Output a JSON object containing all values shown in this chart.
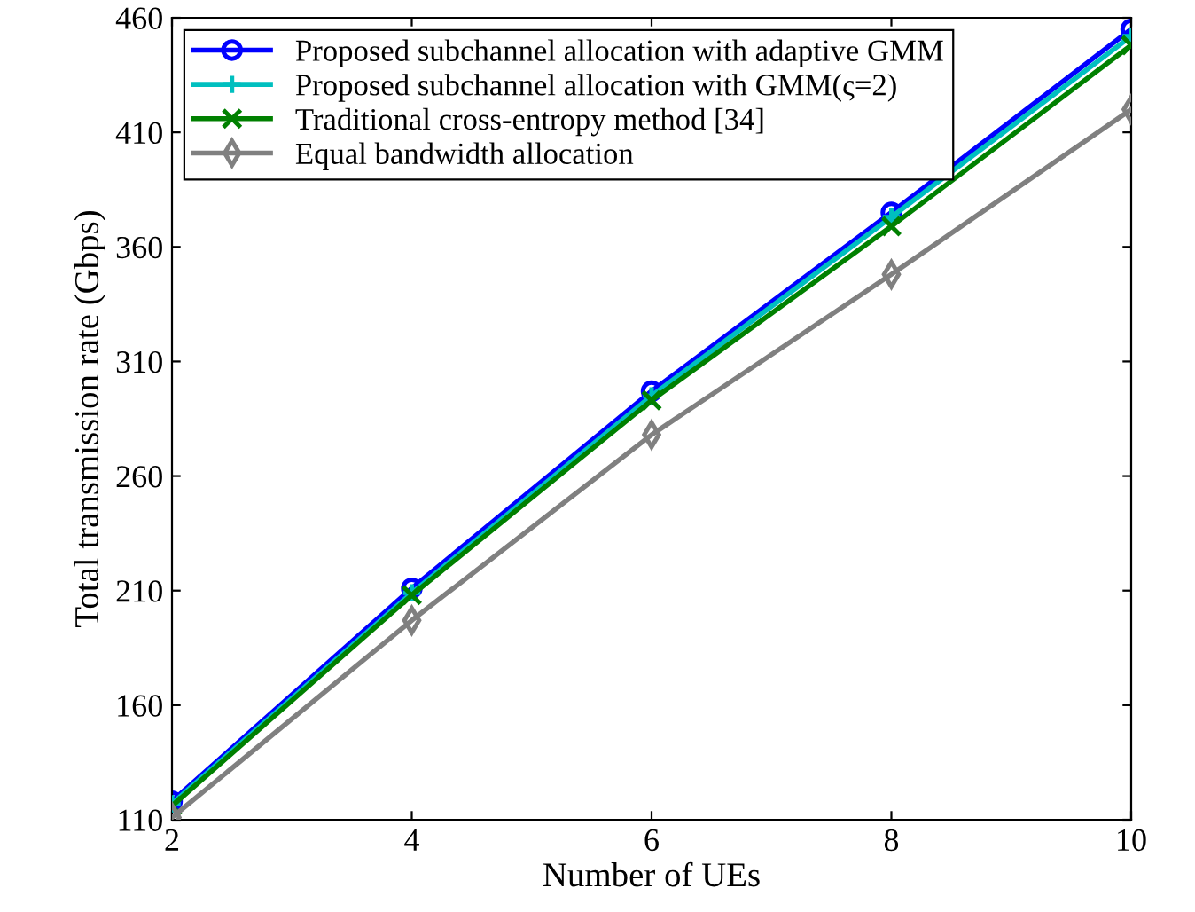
{
  "chart_data": {
    "type": "line",
    "xlabel": "Number of UEs",
    "ylabel": "Total transmission rate (Gbps)",
    "x": [
      2,
      4,
      6,
      8,
      10
    ],
    "series": [
      {
        "name": "Proposed subchannel allocation with adaptive GMM",
        "color": "#0000ff",
        "marker": "circle",
        "values": [
          118,
          211,
          297,
          375,
          455
        ]
      },
      {
        "name": "Proposed subchannel allocation with GMM(ς=2)",
        "color": "#00bfbf",
        "marker": "cross",
        "values": [
          117,
          209,
          295,
          373,
          452
        ]
      },
      {
        "name": "Traditional cross-entropy method [34]",
        "color": "#008000",
        "marker": "x",
        "values": [
          116,
          208,
          293,
          369,
          448
        ]
      },
      {
        "name": "Equal bandwidth allocation",
        "color": "#808080",
        "marker": "diamond",
        "values": [
          111,
          197,
          278,
          348,
          420
        ]
      }
    ],
    "xlim": [
      2,
      10
    ],
    "xticks": [
      2,
      4,
      6,
      8,
      10
    ],
    "ylim": [
      110,
      460
    ],
    "yticks": [
      110,
      160,
      210,
      260,
      310,
      360,
      410,
      460
    ],
    "grid": false,
    "legend": "top left",
    "line_style": "solid"
  }
}
